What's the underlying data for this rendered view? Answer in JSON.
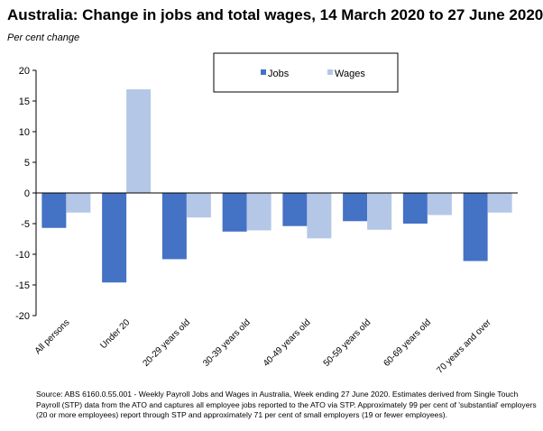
{
  "title": "Australia:  Change in jobs and total wages, 14 March 2020 to 27 June 2020",
  "subtitle": "Per cent change",
  "source": "Source: ABS  6160.0.55.001 - Weekly Payroll Jobs and Wages in Australia, Week ending 27 June 2020.  Estimates derived from Single Touch Payroll (STP) data from the ATO and captures all employee jobs reported to the ATO via STP.  Approximately 99 per cent of 'substantial' employers (20 or more employees) report through STP and approximately 71 per cent of small employers (19 or fewer employees).",
  "chart_data": {
    "type": "bar",
    "categories": [
      "All persons",
      "Under 20",
      "20-29 years old",
      "30-39 years old",
      "40-49 years old",
      "50-59 years old",
      "60-69 years old",
      "70 years and over"
    ],
    "series": [
      {
        "name": "Jobs",
        "color": "#4472c4",
        "values": [
          -5.7,
          -14.6,
          -10.8,
          -6.3,
          -5.4,
          -4.6,
          -5.0,
          -11.1
        ]
      },
      {
        "name": "Wages",
        "color": "#b4c7e7",
        "values": [
          -3.2,
          16.9,
          -4.0,
          -6.1,
          -7.4,
          -6.0,
          -3.6,
          -3.2
        ]
      }
    ],
    "ylim": [
      -20,
      20
    ],
    "yticks": [
      20,
      15,
      10,
      5,
      0,
      -5,
      -10,
      -15,
      -20
    ],
    "legend": "top-center",
    "grid": false
  }
}
